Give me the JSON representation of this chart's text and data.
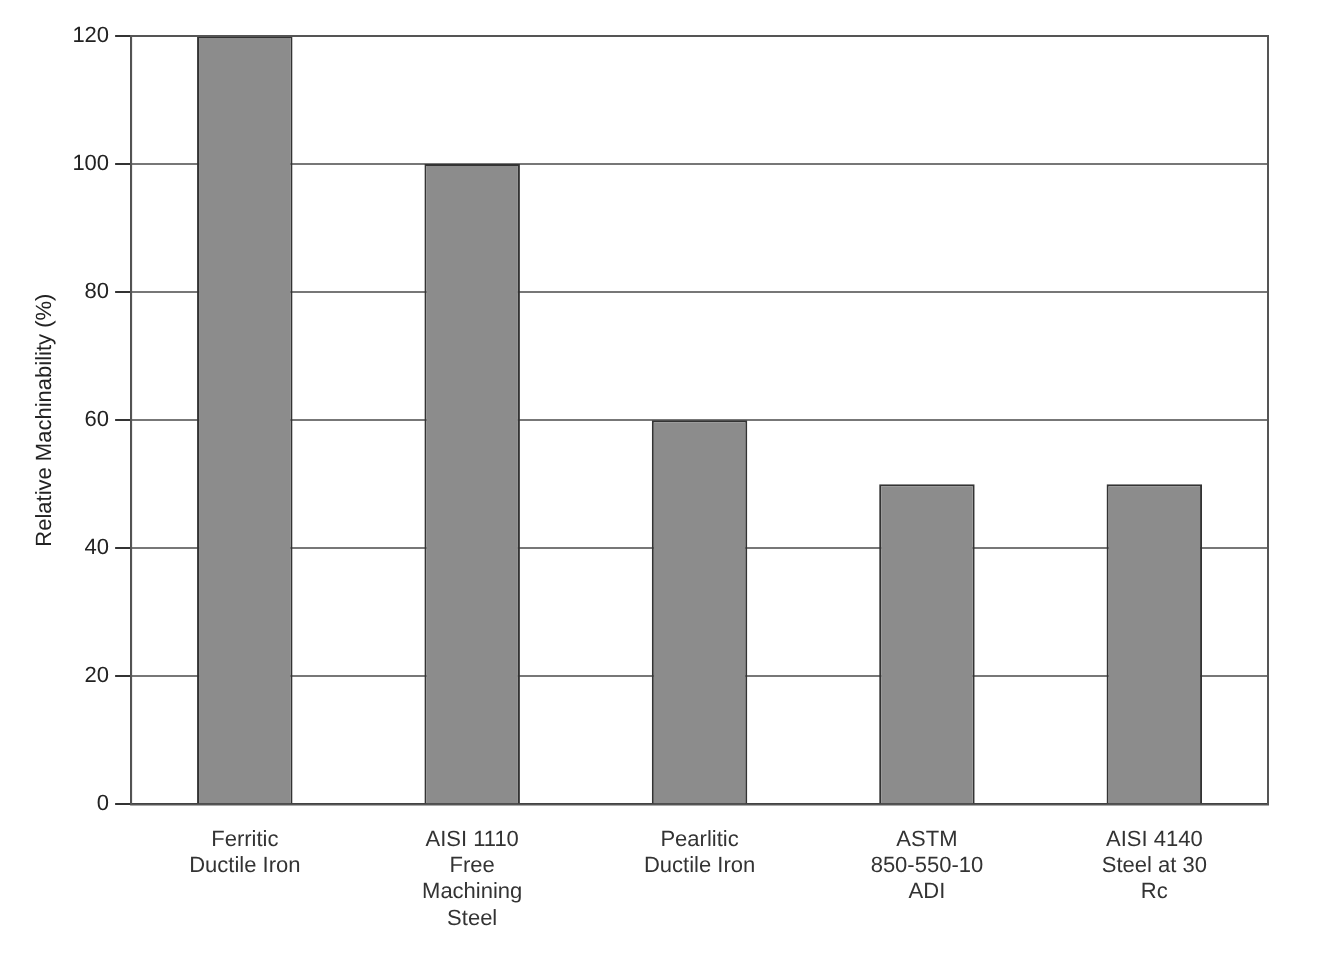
{
  "chart_data": {
    "type": "bar",
    "ylabel": "Relative Machinability (%)",
    "categories": [
      "Ferritic Ductile Iron",
      "AISI 1110 Free Machining Steel",
      "Pearlitic Ductile Iron",
      "ASTM 850-550-10 ADI",
      "AISI 4140 Steel at 30 Rc"
    ],
    "values": [
      120,
      100,
      60,
      50,
      50
    ],
    "color": "#8c8c8c",
    "ylim": [
      0,
      120
    ],
    "yticks": [
      0,
      20,
      40,
      60,
      80,
      100,
      120
    ],
    "grid": "y"
  }
}
